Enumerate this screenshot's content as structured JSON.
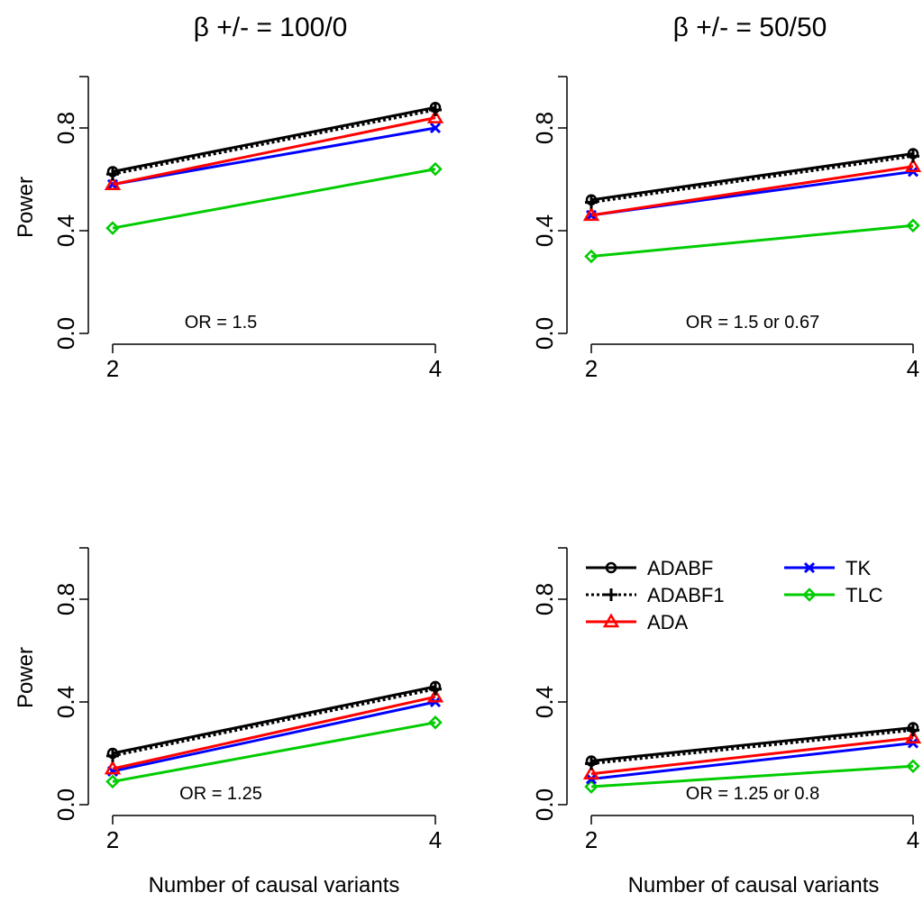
{
  "column_titles": [
    "β +/- = 100/0",
    "β +/- = 50/50"
  ],
  "ylabel": "Power",
  "xlabel": "Number of causal variants",
  "legend": [
    {
      "name": "ADABF",
      "color": "#000000",
      "marker": "circle",
      "dash": "solid"
    },
    {
      "name": "ADABF1",
      "color": "#000000",
      "marker": "plus",
      "dash": "dotted"
    },
    {
      "name": "ADA",
      "color": "#ff0000",
      "marker": "triangle",
      "dash": "solid"
    },
    {
      "name": "TK",
      "color": "#0000ff",
      "marker": "x",
      "dash": "solid"
    },
    {
      "name": "TLC",
      "color": "#00cc00",
      "marker": "diamond",
      "dash": "solid"
    }
  ],
  "chart_data": [
    {
      "type": "line",
      "annotation": "OR = 1.5",
      "x": [
        2,
        4
      ],
      "xlim": [
        2,
        4
      ],
      "ylim": [
        0,
        1
      ],
      "yticks": [
        "0.0",
        "0.4",
        "0.8"
      ],
      "xticks": [
        "2",
        "4"
      ],
      "series": [
        {
          "name": "ADABF",
          "values": [
            0.63,
            0.88
          ]
        },
        {
          "name": "ADABF1",
          "values": [
            0.62,
            0.87
          ]
        },
        {
          "name": "ADA",
          "values": [
            0.58,
            0.84
          ]
        },
        {
          "name": "TK",
          "values": [
            0.58,
            0.8
          ]
        },
        {
          "name": "TLC",
          "values": [
            0.41,
            0.64
          ]
        }
      ]
    },
    {
      "type": "line",
      "annotation": "OR = 1.5 or 0.67",
      "x": [
        2,
        4
      ],
      "xlim": [
        2,
        4
      ],
      "ylim": [
        0,
        1
      ],
      "yticks": [
        "0.0",
        "0.4",
        "0.8"
      ],
      "xticks": [
        "2",
        "4"
      ],
      "series": [
        {
          "name": "ADABF",
          "values": [
            0.52,
            0.7
          ]
        },
        {
          "name": "ADABF1",
          "values": [
            0.51,
            0.69
          ]
        },
        {
          "name": "ADA",
          "values": [
            0.46,
            0.65
          ]
        },
        {
          "name": "TK",
          "values": [
            0.46,
            0.63
          ]
        },
        {
          "name": "TLC",
          "values": [
            0.3,
            0.42
          ]
        }
      ]
    },
    {
      "type": "line",
      "annotation": "OR = 1.25",
      "x": [
        2,
        4
      ],
      "xlim": [
        2,
        4
      ],
      "ylim": [
        0,
        1
      ],
      "yticks": [
        "0.0",
        "0.4",
        "0.8"
      ],
      "xticks": [
        "2",
        "4"
      ],
      "series": [
        {
          "name": "ADABF",
          "values": [
            0.2,
            0.46
          ]
        },
        {
          "name": "ADABF1",
          "values": [
            0.19,
            0.45
          ]
        },
        {
          "name": "ADA",
          "values": [
            0.14,
            0.42
          ]
        },
        {
          "name": "TK",
          "values": [
            0.13,
            0.4
          ]
        },
        {
          "name": "TLC",
          "values": [
            0.09,
            0.32
          ]
        }
      ]
    },
    {
      "type": "line",
      "annotation": "OR = 1.25 or 0.8",
      "x": [
        2,
        4
      ],
      "xlim": [
        2,
        4
      ],
      "ylim": [
        0,
        1
      ],
      "yticks": [
        "0.0",
        "0.4",
        "0.8"
      ],
      "xticks": [
        "2",
        "4"
      ],
      "series": [
        {
          "name": "ADABF",
          "values": [
            0.17,
            0.3
          ]
        },
        {
          "name": "ADABF1",
          "values": [
            0.16,
            0.29
          ]
        },
        {
          "name": "ADA",
          "values": [
            0.12,
            0.26
          ]
        },
        {
          "name": "TK",
          "values": [
            0.1,
            0.24
          ]
        },
        {
          "name": "TLC",
          "values": [
            0.07,
            0.15
          ]
        }
      ]
    }
  ]
}
